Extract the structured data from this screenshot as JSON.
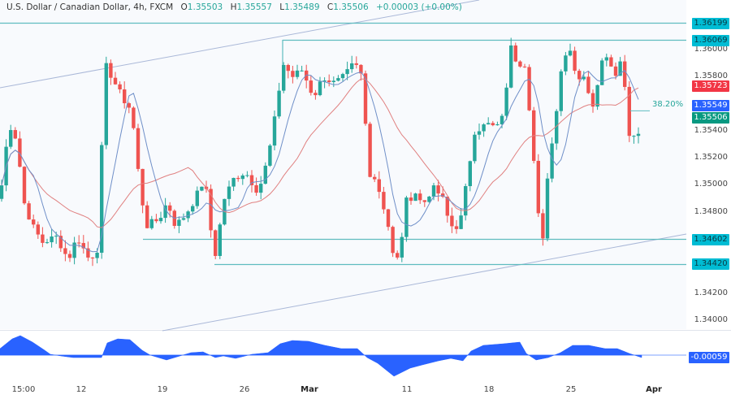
{
  "header": {
    "symbol_title": "U.S. Dollar / Canadian Dollar, 4h, FXCM",
    "open_label": "O",
    "open": "1.35503",
    "high_label": "H",
    "high": "1.35557",
    "low_label": "L",
    "low": "1.35489",
    "close_label": "C",
    "close": "1.35506",
    "change": "+0.00003 (+0.00%)"
  },
  "price_axis": {
    "ticks": [
      "1.36000",
      "1.35800",
      "1.35400",
      "1.35200",
      "1.35000",
      "1.34800",
      "1.34200",
      "1.34000"
    ],
    "tags": {
      "resistance_top": "1.36199",
      "resistance": "1.36069",
      "ma_slow": "1.35723",
      "ma_fast": "1.35549",
      "last_price": "1.35506",
      "support": "1.34602",
      "support_low": "1.34420"
    },
    "oscillator_value": "-0.00059"
  },
  "time_axis": {
    "labels": [
      "15:00",
      "12",
      "19",
      "26",
      "Mar",
      "11",
      "18",
      "25",
      "Apr"
    ]
  },
  "annotations": {
    "fib_label": "38.20%"
  },
  "colors": {
    "up": "#26a69a",
    "down": "#ef5350",
    "ma_fast": "#6f8fc8",
    "ma_slow": "#e08080",
    "hline": "#5fbcc0",
    "channel": "#aab8d8",
    "tag_teal": "#00bcd4",
    "tag_red": "#f23645",
    "tag_blue": "#2962ff",
    "tag_green": "#089981",
    "oscillator": "#2962ff"
  },
  "chart_data": {
    "type": "candlestick",
    "title": "U.S. Dollar / Canadian Dollar, 4h, FXCM",
    "xlabel": "",
    "ylabel": "Price",
    "ylim": [
      1.3395,
      1.364
    ],
    "x_ticks": [
      "15:00",
      "12",
      "19",
      "26",
      "Mar",
      "11",
      "18",
      "25",
      "Apr"
    ],
    "y_ticks": [
      1.34,
      1.342,
      1.348,
      1.35,
      1.352,
      1.354,
      1.358,
      1.36
    ],
    "horizontal_levels": [
      1.36199,
      1.36069,
      1.34602,
      1.3442
    ],
    "ma_fast_last": 1.35549,
    "ma_slow_last": 1.35723,
    "last": {
      "open": 1.35503,
      "high": 1.35557,
      "low": 1.35489,
      "close": 1.35506,
      "change": 3e-05,
      "change_pct": 0.0
    },
    "fibonacci": {
      "level": "38.20%",
      "price": 1.35549
    },
    "oscillator": {
      "last": -0.00059,
      "type": "histogram-area"
    },
    "key_swings": [
      {
        "x": "~Feb 8",
        "price": 1.354
      },
      {
        "x": "~Feb 13",
        "price": 1.347
      },
      {
        "x": "~Feb 14",
        "price": 1.3588
      },
      {
        "x": "~Feb 22",
        "price": 1.3445
      },
      {
        "x": "~Feb 29",
        "price": 1.3605
      },
      {
        "x": "~Mar 8",
        "price": 1.359
      },
      {
        "x": "~Mar 11",
        "price": 1.342
      },
      {
        "x": "~Mar 19",
        "price": 1.3612
      },
      {
        "x": "~Mar 22",
        "price": 1.346
      },
      {
        "x": "~Mar 25",
        "price": 1.3612
      },
      {
        "x": "~Mar 28",
        "price": 1.3533
      },
      {
        "x": "Mar 29",
        "price": 1.35506
      }
    ]
  }
}
